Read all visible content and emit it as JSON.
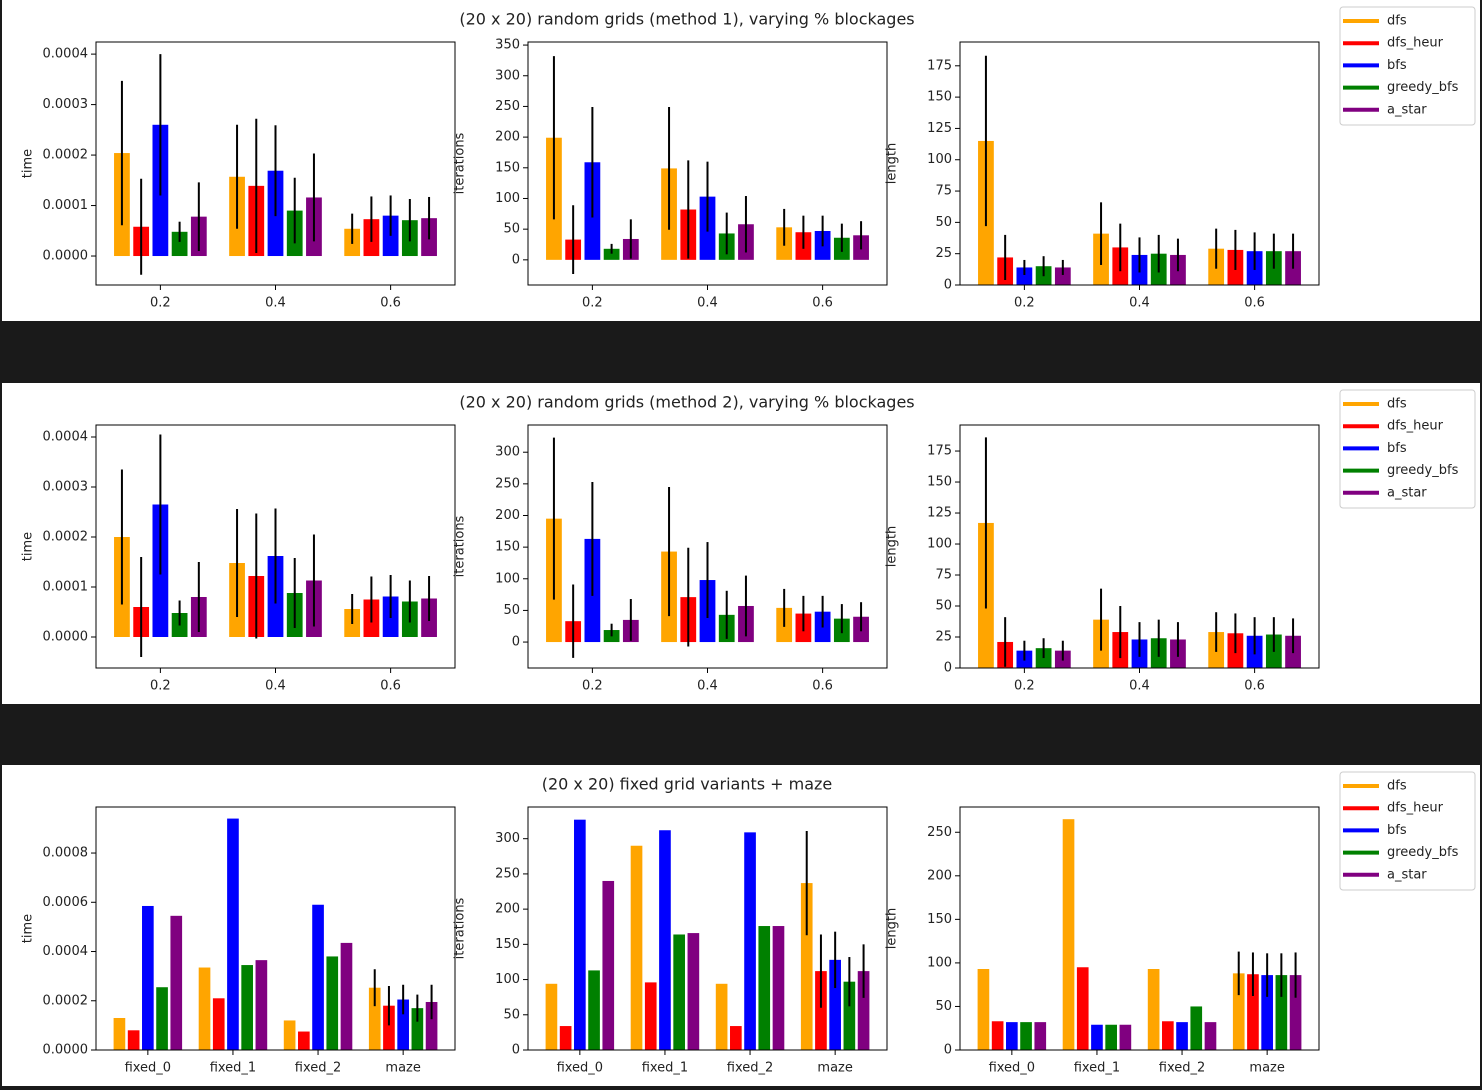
{
  "chart_data": [
    {
      "type": "bar",
      "title": "(20 x 20) random grids (method 1), varying % blockages",
      "categories": [
        "0.2",
        "0.4",
        "0.6"
      ],
      "series": [
        {
          "name": "dfs",
          "color": "#ffa500"
        },
        {
          "name": "dfs_heur",
          "color": "#ff0000"
        },
        {
          "name": "bfs",
          "color": "#0000ff"
        },
        {
          "name": "greedy_bfs",
          "color": "#008000"
        },
        {
          "name": "a_star",
          "color": "#800080"
        }
      ],
      "panels": [
        {
          "ylabel": "time",
          "ylim": [
            -5.74e-05,
            0.000424
          ],
          "yticks": [
            {
              "value": 0,
              "label": "0.0000"
            },
            {
              "value": 0.0001,
              "label": "0.0001"
            },
            {
              "value": 0.0002,
              "label": "0.0002"
            },
            {
              "value": 0.0003,
              "label": "0.0003"
            },
            {
              "value": 0.0004,
              "label": "0.0004"
            }
          ],
          "values": [
            [
              0.000204,
              0.000157,
              5.4e-05
            ],
            [
              5.8e-05,
              0.000139,
              7.3e-05
            ],
            [
              0.00026,
              0.000169,
              8e-05
            ],
            [
              4.8e-05,
              9e-05,
              7.1e-05
            ],
            [
              7.8e-05,
              0.000116,
              7.5e-05
            ]
          ],
          "errors": [
            [
              0.000143,
              0.000103,
              3e-05
            ],
            [
              9.5e-05,
              0.000133,
              4.5e-05
            ],
            [
              0.00014,
              9e-05,
              4e-05
            ],
            [
              2e-05,
              6.5e-05,
              4.2e-05
            ],
            [
              6.8e-05,
              8.7e-05,
              4.2e-05
            ]
          ]
        },
        {
          "ylabel": "iterations",
          "ylim": [
            -41,
            355
          ],
          "yticks": [
            0,
            50,
            100,
            150,
            200,
            250,
            300,
            350
          ],
          "values": [
            [
              199,
              149,
              53
            ],
            [
              33,
              82,
              45
            ],
            [
              159,
              103,
              47
            ],
            [
              18,
              43,
              36
            ],
            [
              34,
              58,
              40
            ]
          ],
          "errors": [
            [
              133,
              100,
              30
            ],
            [
              56,
              80,
              27
            ],
            [
              90,
              57,
              25
            ],
            [
              8,
              34,
              23
            ],
            [
              32,
              46,
              23
            ]
          ]
        },
        {
          "ylabel": "length",
          "ylim": [
            0,
            194
          ],
          "yticks": [
            0,
            25,
            50,
            75,
            100,
            125,
            150,
            175
          ],
          "values": [
            [
              115,
              41,
              29
            ],
            [
              22,
              30,
              28
            ],
            [
              14,
              24,
              27
            ],
            [
              15,
              25,
              27
            ],
            [
              14,
              24,
              27
            ]
          ],
          "errors": [
            [
              68,
              25,
              16
            ],
            [
              18,
              19,
              16
            ],
            [
              6,
              14,
              15
            ],
            [
              8,
              15,
              14
            ],
            [
              6,
              13,
              14
            ]
          ]
        }
      ]
    },
    {
      "type": "bar",
      "title": "(20 x 20) random grids (method 2), varying % blockages",
      "categories": [
        "0.2",
        "0.4",
        "0.6"
      ],
      "series": [
        {
          "name": "dfs",
          "color": "#ffa500"
        },
        {
          "name": "dfs_heur",
          "color": "#ff0000"
        },
        {
          "name": "bfs",
          "color": "#0000ff"
        },
        {
          "name": "greedy_bfs",
          "color": "#008000"
        },
        {
          "name": "a_star",
          "color": "#800080"
        }
      ],
      "panels": [
        {
          "ylabel": "time",
          "ylim": [
            -6.2e-05,
            0.000424
          ],
          "yticks": [
            {
              "value": 0,
              "label": "0.0000"
            },
            {
              "value": 0.0001,
              "label": "0.0001"
            },
            {
              "value": 0.0002,
              "label": "0.0002"
            },
            {
              "value": 0.0003,
              "label": "0.0003"
            },
            {
              "value": 0.0004,
              "label": "0.0004"
            }
          ],
          "values": [
            [
              0.0002,
              0.000148,
              5.6e-05
            ],
            [
              6e-05,
              0.000122,
              7.5e-05
            ],
            [
              0.000265,
              0.000162,
              8.1e-05
            ],
            [
              4.8e-05,
              8.8e-05,
              7.1e-05
            ],
            [
              8e-05,
              0.000113,
              7.7e-05
            ]
          ],
          "errors": [
            [
              0.000135,
              0.000108,
              3e-05
            ],
            [
              0.0001,
              0.000125,
              4.6e-05
            ],
            [
              0.00014,
              9.5e-05,
              4.3e-05
            ],
            [
              2.5e-05,
              7e-05,
              4.2e-05
            ],
            [
              7e-05,
              9.2e-05,
              4.5e-05
            ]
          ]
        },
        {
          "ylabel": "iterations",
          "ylim": [
            -41,
            343
          ],
          "yticks": [
            0,
            50,
            100,
            150,
            200,
            250,
            300
          ],
          "values": [
            [
              195,
              143,
              54
            ],
            [
              33,
              71,
              45
            ],
            [
              163,
              98,
              48
            ],
            [
              19,
              43,
              37
            ],
            [
              35,
              57,
              40
            ]
          ],
          "errors": [
            [
              128,
              102,
              30
            ],
            [
              58,
              78,
              28
            ],
            [
              90,
              60,
              25
            ],
            [
              10,
              38,
              23
            ],
            [
              33,
              48,
              23
            ]
          ]
        },
        {
          "ylabel": "length",
          "ylim": [
            0,
            196
          ],
          "yticks": [
            0,
            25,
            50,
            75,
            100,
            125,
            150,
            175
          ],
          "values": [
            [
              117,
              39,
              29
            ],
            [
              21,
              29,
              28
            ],
            [
              14,
              23,
              26
            ],
            [
              16,
              24,
              27
            ],
            [
              14,
              23,
              26
            ]
          ],
          "errors": [
            [
              69,
              25,
              16
            ],
            [
              20,
              21,
              16
            ],
            [
              8,
              14,
              15
            ],
            [
              8,
              15,
              14
            ],
            [
              8,
              14,
              14
            ]
          ]
        }
      ]
    },
    {
      "type": "bar",
      "title": "(20 x 20) fixed grid variants + maze",
      "categories": [
        "fixed_0",
        "fixed_1",
        "fixed_2",
        "maze"
      ],
      "series": [
        {
          "name": "dfs",
          "color": "#ffa500"
        },
        {
          "name": "dfs_heur",
          "color": "#ff0000"
        },
        {
          "name": "bfs",
          "color": "#0000ff"
        },
        {
          "name": "greedy_bfs",
          "color": "#008000"
        },
        {
          "name": "a_star",
          "color": "#800080"
        }
      ],
      "panels": [
        {
          "ylabel": "time",
          "ylim": [
            0,
            0.000987
          ],
          "yticks": [
            {
              "value": 0,
              "label": "0.0000"
            },
            {
              "value": 0.0002,
              "label": "0.0002"
            },
            {
              "value": 0.0004,
              "label": "0.0004"
            },
            {
              "value": 0.0006,
              "label": "0.0006"
            },
            {
              "value": 0.0008,
              "label": "0.0008"
            }
          ],
          "values": [
            [
              0.00013,
              0.000335,
              0.00012,
              0.000253
            ],
            [
              8e-05,
              0.00021,
              7.5e-05,
              0.00018
            ],
            [
              0.000585,
              0.00094,
              0.00059,
              0.000205
            ],
            [
              0.000255,
              0.000345,
              0.00038,
              0.00017
            ],
            [
              0.000545,
              0.000365,
              0.000435,
              0.000195
            ]
          ],
          "errors": [
            [
              null,
              null,
              null,
              7.5e-05
            ],
            [
              null,
              null,
              null,
              8e-05
            ],
            [
              null,
              null,
              null,
              6e-05
            ],
            [
              null,
              null,
              null,
              5.5e-05
            ],
            [
              null,
              null,
              null,
              7e-05
            ]
          ]
        },
        {
          "ylabel": "iterations",
          "ylim": [
            0,
            345
          ],
          "yticks": [
            0,
            50,
            100,
            150,
            200,
            250,
            300
          ],
          "values": [
            [
              94,
              290,
              94,
              237
            ],
            [
              34,
              96,
              34,
              112
            ],
            [
              327,
              312,
              309,
              128
            ],
            [
              113,
              164,
              176,
              97
            ],
            [
              240,
              166,
              176,
              112
            ]
          ],
          "errors": [
            [
              null,
              null,
              null,
              74
            ],
            [
              null,
              null,
              null,
              52
            ],
            [
              null,
              null,
              null,
              40
            ],
            [
              null,
              null,
              null,
              35
            ],
            [
              null,
              null,
              null,
              38
            ]
          ]
        },
        {
          "ylabel": "length",
          "ylim": [
            0,
            279
          ],
          "yticks": [
            0,
            50,
            100,
            150,
            200,
            250
          ],
          "values": [
            [
              93,
              265,
              93,
              88
            ],
            [
              33,
              95,
              33,
              87
            ],
            [
              32,
              29,
              32,
              86
            ],
            [
              32,
              29,
              50,
              86
            ],
            [
              32,
              29,
              32,
              86
            ]
          ],
          "errors": [
            [
              null,
              null,
              null,
              25
            ],
            [
              null,
              null,
              null,
              25
            ],
            [
              null,
              null,
              null,
              25
            ],
            [
              null,
              null,
              null,
              25
            ],
            [
              null,
              null,
              null,
              26
            ]
          ]
        }
      ]
    }
  ]
}
